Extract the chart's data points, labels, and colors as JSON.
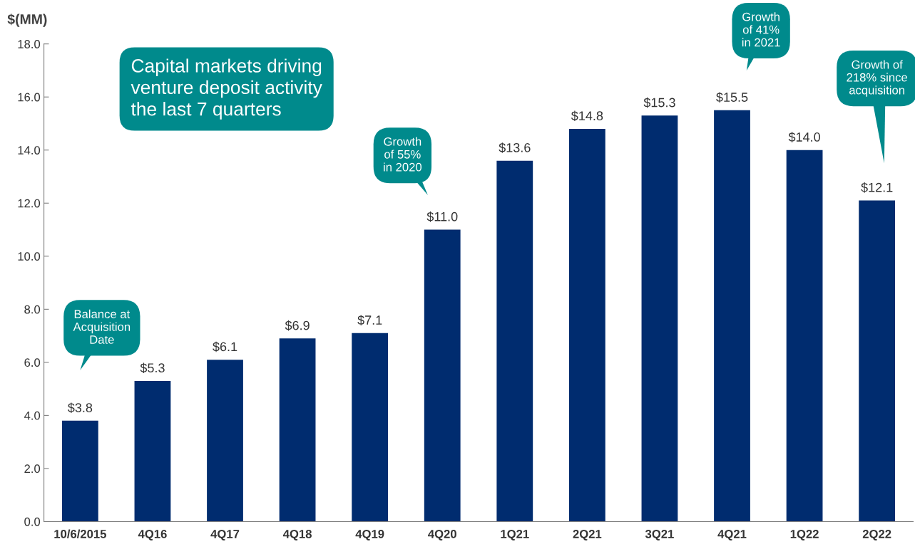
{
  "chart_data": {
    "type": "bar",
    "ylabel": "$(MM)",
    "categories": [
      "10/6/2015",
      "4Q16",
      "4Q17",
      "4Q18",
      "4Q19",
      "4Q20",
      "1Q21",
      "2Q21",
      "3Q21",
      "4Q21",
      "1Q22",
      "2Q22"
    ],
    "values": [
      3.8,
      5.3,
      6.1,
      6.9,
      7.1,
      11.0,
      13.6,
      14.8,
      15.3,
      15.5,
      14.0,
      12.1
    ],
    "value_labels": [
      "$3.8",
      "$5.3",
      "$6.1",
      "$6.9",
      "$7.1",
      "$11.0",
      "$13.6",
      "$14.8",
      "$15.3",
      "$15.5",
      "$14.0",
      "$12.1"
    ],
    "color": "#002c6f",
    "ylim": [
      0,
      18
    ],
    "yticks": [
      {
        "value": 0,
        "label": "0.0"
      },
      {
        "value": 2,
        "label": "2.0"
      },
      {
        "value": 4,
        "label": "4.0"
      },
      {
        "value": 6,
        "label": "6.0"
      },
      {
        "value": 8,
        "label": "8.0"
      },
      {
        "value": 10,
        "label": "10.0"
      },
      {
        "value": 12,
        "label": "12.0"
      },
      {
        "value": 14,
        "label": "14.0"
      },
      {
        "value": 16,
        "label": "16.0"
      },
      {
        "value": 18,
        "label": "18.0"
      }
    ],
    "grid": false,
    "annotations": [
      "Capital markets driving\nventure deposit activity\nthe last 7 quarters",
      "Balance at\nAcquisition\nDate",
      "Growth\nof 55%\nin 2020",
      "Growth\nof 41%\nin 2021",
      "Growth of\n218% since\nacquisition"
    ]
  }
}
